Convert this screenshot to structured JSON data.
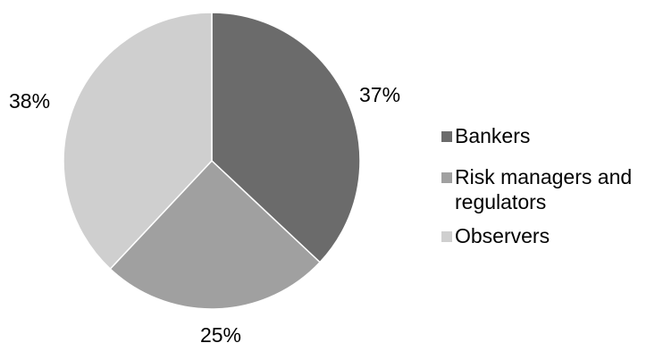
{
  "chart_data": {
    "type": "pie",
    "categories": [
      "Bankers",
      "Risk managers and regulators",
      "Observers"
    ],
    "values": [
      37,
      25,
      38
    ],
    "labels": [
      "37%",
      "25%",
      "38%"
    ],
    "colors": [
      "#6b6b6b",
      "#a0a0a0",
      "#cfcfcf"
    ],
    "legend_position": "right"
  }
}
